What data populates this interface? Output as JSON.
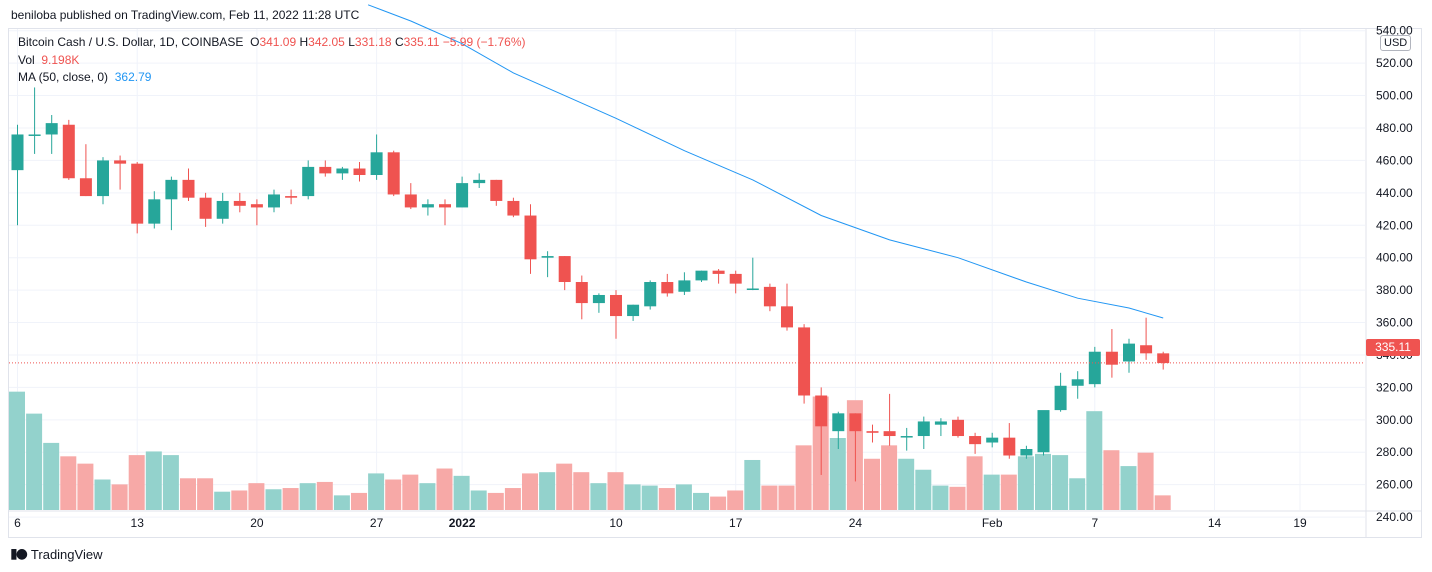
{
  "header": {
    "published": "beniloba published on TradingView.com, Feb 11, 2022 11:28 UTC"
  },
  "legend": {
    "symbol": "Bitcoin Cash / U.S. Dollar, 1D, COINBASE",
    "o_label": "O",
    "o_value": "341.09",
    "h_label": "H",
    "h_value": "342.05",
    "l_label": "L",
    "l_value": "331.18",
    "c_label": "C",
    "c_value": "335.11",
    "change": "−5.99 (−1.76%)",
    "vol_label": "Vol",
    "vol_value": "9.198K",
    "ma_label": "MA (50, close, 0)",
    "ma_value": "362.79"
  },
  "currency": "USD",
  "last_price": "335.11",
  "footer": {
    "brand": "TradingView",
    "brand_icon": "tradingview-logo-icon"
  },
  "colors": {
    "up": "#26a69a",
    "down": "#ef5350",
    "ma": "#2196f3",
    "vol_up": "#93d2cc",
    "vol_down": "#f7a9a7",
    "grid": "#f0f3fa"
  },
  "chart_data": {
    "type": "candlestick",
    "y_axis": {
      "min": 235,
      "max": 560,
      "ticks": [
        "240.00",
        "260.00",
        "280.00",
        "300.00",
        "320.00",
        "340.00",
        "360.00",
        "380.00",
        "400.00",
        "420.00",
        "440.00",
        "460.00",
        "480.00",
        "500.00",
        "520.00",
        "540.00"
      ]
    },
    "x_ticks": [
      {
        "label": "6",
        "bar": 0
      },
      {
        "label": "13",
        "bar": 7
      },
      {
        "label": "20",
        "bar": 14
      },
      {
        "label": "27",
        "bar": 21
      },
      {
        "label": "2022",
        "bar": 26
      },
      {
        "label": "10",
        "bar": 35
      },
      {
        "label": "17",
        "bar": 42
      },
      {
        "label": "24",
        "bar": 49
      },
      {
        "label": "Feb",
        "bar": 57
      },
      {
        "label": "7",
        "bar": 63
      },
      {
        "label": "14",
        "bar": 70
      },
      {
        "label": "19",
        "bar": 75
      }
    ],
    "candles": [
      {
        "o": 454,
        "h": 482,
        "l": 420,
        "c": 476,
        "v": 0.97
      },
      {
        "o": 476,
        "h": 505,
        "l": 464,
        "c": 476,
        "v": 0.79
      },
      {
        "o": 476,
        "h": 488,
        "l": 464,
        "c": 483,
        "v": 0.55
      },
      {
        "o": 482,
        "h": 485,
        "l": 448,
        "c": 449,
        "v": 0.44
      },
      {
        "o": 449,
        "h": 470,
        "l": 438,
        "c": 438,
        "v": 0.38
      },
      {
        "o": 438,
        "h": 462,
        "l": 433,
        "c": 460,
        "v": 0.25
      },
      {
        "o": 460,
        "h": 463,
        "l": 442,
        "c": 458,
        "v": 0.21
      },
      {
        "o": 458,
        "h": 459,
        "l": 415,
        "c": 421,
        "v": 0.45
      },
      {
        "o": 421,
        "h": 441,
        "l": 418,
        "c": 436,
        "v": 0.48
      },
      {
        "o": 436,
        "h": 450,
        "l": 417,
        "c": 448,
        "v": 0.45
      },
      {
        "o": 448,
        "h": 455,
        "l": 435,
        "c": 437,
        "v": 0.26
      },
      {
        "o": 437,
        "h": 440,
        "l": 419,
        "c": 424,
        "v": 0.26
      },
      {
        "o": 424,
        "h": 440,
        "l": 421,
        "c": 435,
        "v": 0.15
      },
      {
        "o": 435,
        "h": 440,
        "l": 428,
        "c": 432,
        "v": 0.16
      },
      {
        "o": 433,
        "h": 436,
        "l": 420,
        "c": 431,
        "v": 0.22
      },
      {
        "o": 431,
        "h": 442,
        "l": 428,
        "c": 439,
        "v": 0.17
      },
      {
        "o": 438,
        "h": 442,
        "l": 433,
        "c": 437,
        "v": 0.18
      },
      {
        "o": 438,
        "h": 460,
        "l": 436,
        "c": 456,
        "v": 0.22
      },
      {
        "o": 456,
        "h": 460,
        "l": 450,
        "c": 452,
        "v": 0.23
      },
      {
        "o": 452,
        "h": 456,
        "l": 448,
        "c": 455,
        "v": 0.12
      },
      {
        "o": 455,
        "h": 459,
        "l": 447,
        "c": 451,
        "v": 0.14
      },
      {
        "o": 451,
        "h": 476,
        "l": 448,
        "c": 465,
        "v": 0.3
      },
      {
        "o": 465,
        "h": 466,
        "l": 438,
        "c": 439,
        "v": 0.25
      },
      {
        "o": 439,
        "h": 446,
        "l": 430,
        "c": 431,
        "v": 0.29
      },
      {
        "o": 431,
        "h": 436,
        "l": 426,
        "c": 433,
        "v": 0.22
      },
      {
        "o": 433,
        "h": 436,
        "l": 420,
        "c": 431,
        "v": 0.34
      },
      {
        "o": 431,
        "h": 450,
        "l": 431,
        "c": 446,
        "v": 0.28
      },
      {
        "o": 446,
        "h": 452,
        "l": 443,
        "c": 448,
        "v": 0.16
      },
      {
        "o": 448,
        "h": 448,
        "l": 432,
        "c": 435,
        "v": 0.14
      },
      {
        "o": 435,
        "h": 437,
        "l": 425,
        "c": 426,
        "v": 0.18
      },
      {
        "o": 426,
        "h": 433,
        "l": 390,
        "c": 399,
        "v": 0.3
      },
      {
        "o": 400,
        "h": 404,
        "l": 388,
        "c": 401,
        "v": 0.31
      },
      {
        "o": 401,
        "h": 401,
        "l": 380,
        "c": 385,
        "v": 0.38
      },
      {
        "o": 385,
        "h": 389,
        "l": 362,
        "c": 372,
        "v": 0.31
      },
      {
        "o": 372,
        "h": 378,
        "l": 366,
        "c": 377,
        "v": 0.22
      },
      {
        "o": 377,
        "h": 380,
        "l": 350,
        "c": 364,
        "v": 0.31
      },
      {
        "o": 364,
        "h": 371,
        "l": 361,
        "c": 371,
        "v": 0.21
      },
      {
        "o": 370,
        "h": 386,
        "l": 368,
        "c": 385,
        "v": 0.2
      },
      {
        "o": 385,
        "h": 390,
        "l": 376,
        "c": 378,
        "v": 0.18
      },
      {
        "o": 379,
        "h": 391,
        "l": 377,
        "c": 386,
        "v": 0.21
      },
      {
        "o": 386,
        "h": 392,
        "l": 385,
        "c": 392,
        "v": 0.14
      },
      {
        "o": 392,
        "h": 393,
        "l": 384,
        "c": 390,
        "v": 0.11
      },
      {
        "o": 390,
        "h": 392,
        "l": 378,
        "c": 384,
        "v": 0.16
      },
      {
        "o": 381,
        "h": 400,
        "l": 380,
        "c": 381,
        "v": 0.41
      },
      {
        "o": 382,
        "h": 384,
        "l": 367,
        "c": 370,
        "v": 0.2
      },
      {
        "o": 370,
        "h": 384,
        "l": 355,
        "c": 357,
        "v": 0.2
      },
      {
        "o": 357,
        "h": 359,
        "l": 310,
        "c": 315,
        "v": 0.53
      },
      {
        "o": 315,
        "h": 320,
        "l": 266,
        "c": 296,
        "v": 0.93
      },
      {
        "o": 293,
        "h": 305,
        "l": 282,
        "c": 304,
        "v": 0.59
      },
      {
        "o": 304,
        "h": 304,
        "l": 262,
        "c": 293,
        "v": 0.9
      },
      {
        "o": 293,
        "h": 297,
        "l": 286,
        "c": 292,
        "v": 0.42
      },
      {
        "o": 293,
        "h": 316,
        "l": 284,
        "c": 290,
        "v": 0.53
      },
      {
        "o": 290,
        "h": 295,
        "l": 281,
        "c": 290,
        "v": 0.42
      },
      {
        "o": 290,
        "h": 302,
        "l": 282,
        "c": 299,
        "v": 0.33
      },
      {
        "o": 297,
        "h": 301,
        "l": 290,
        "c": 299,
        "v": 0.2
      },
      {
        "o": 300,
        "h": 302,
        "l": 289,
        "c": 290,
        "v": 0.19
      },
      {
        "o": 290,
        "h": 292,
        "l": 279,
        "c": 285,
        "v": 0.44
      },
      {
        "o": 286,
        "h": 292,
        "l": 283,
        "c": 289,
        "v": 0.29
      },
      {
        "o": 289,
        "h": 298,
        "l": 276,
        "c": 278,
        "v": 0.29
      },
      {
        "o": 278,
        "h": 284,
        "l": 276,
        "c": 282,
        "v": 0.44
      },
      {
        "o": 280,
        "h": 305,
        "l": 278,
        "c": 306,
        "v": 0.46
      },
      {
        "o": 306,
        "h": 329,
        "l": 305,
        "c": 321,
        "v": 0.45
      },
      {
        "o": 321,
        "h": 330,
        "l": 313,
        "c": 325,
        "v": 0.26
      },
      {
        "o": 322,
        "h": 345,
        "l": 320,
        "c": 342,
        "v": 0.81
      },
      {
        "o": 342,
        "h": 356,
        "l": 326,
        "c": 334,
        "v": 0.49
      },
      {
        "o": 336,
        "h": 350,
        "l": 329,
        "c": 347,
        "v": 0.36
      },
      {
        "o": 346,
        "h": 363,
        "l": 337,
        "c": 341,
        "v": 0.47
      },
      {
        "o": 341,
        "h": 342,
        "l": 331,
        "c": 335,
        "v": 0.12
      }
    ],
    "ma50": [
      {
        "bar": 20.5,
        "y": 556
      },
      {
        "bar": 23,
        "y": 546
      },
      {
        "bar": 26,
        "y": 532
      },
      {
        "bar": 29,
        "y": 514
      },
      {
        "bar": 32,
        "y": 500
      },
      {
        "bar": 35,
        "y": 486
      },
      {
        "bar": 39,
        "y": 466
      },
      {
        "bar": 43,
        "y": 448
      },
      {
        "bar": 47,
        "y": 426
      },
      {
        "bar": 51,
        "y": 411
      },
      {
        "bar": 55,
        "y": 400
      },
      {
        "bar": 59,
        "y": 385
      },
      {
        "bar": 62,
        "y": 375
      },
      {
        "bar": 65,
        "y": 369
      },
      {
        "bar": 67,
        "y": 362.8
      }
    ],
    "last_close": 335.11
  }
}
